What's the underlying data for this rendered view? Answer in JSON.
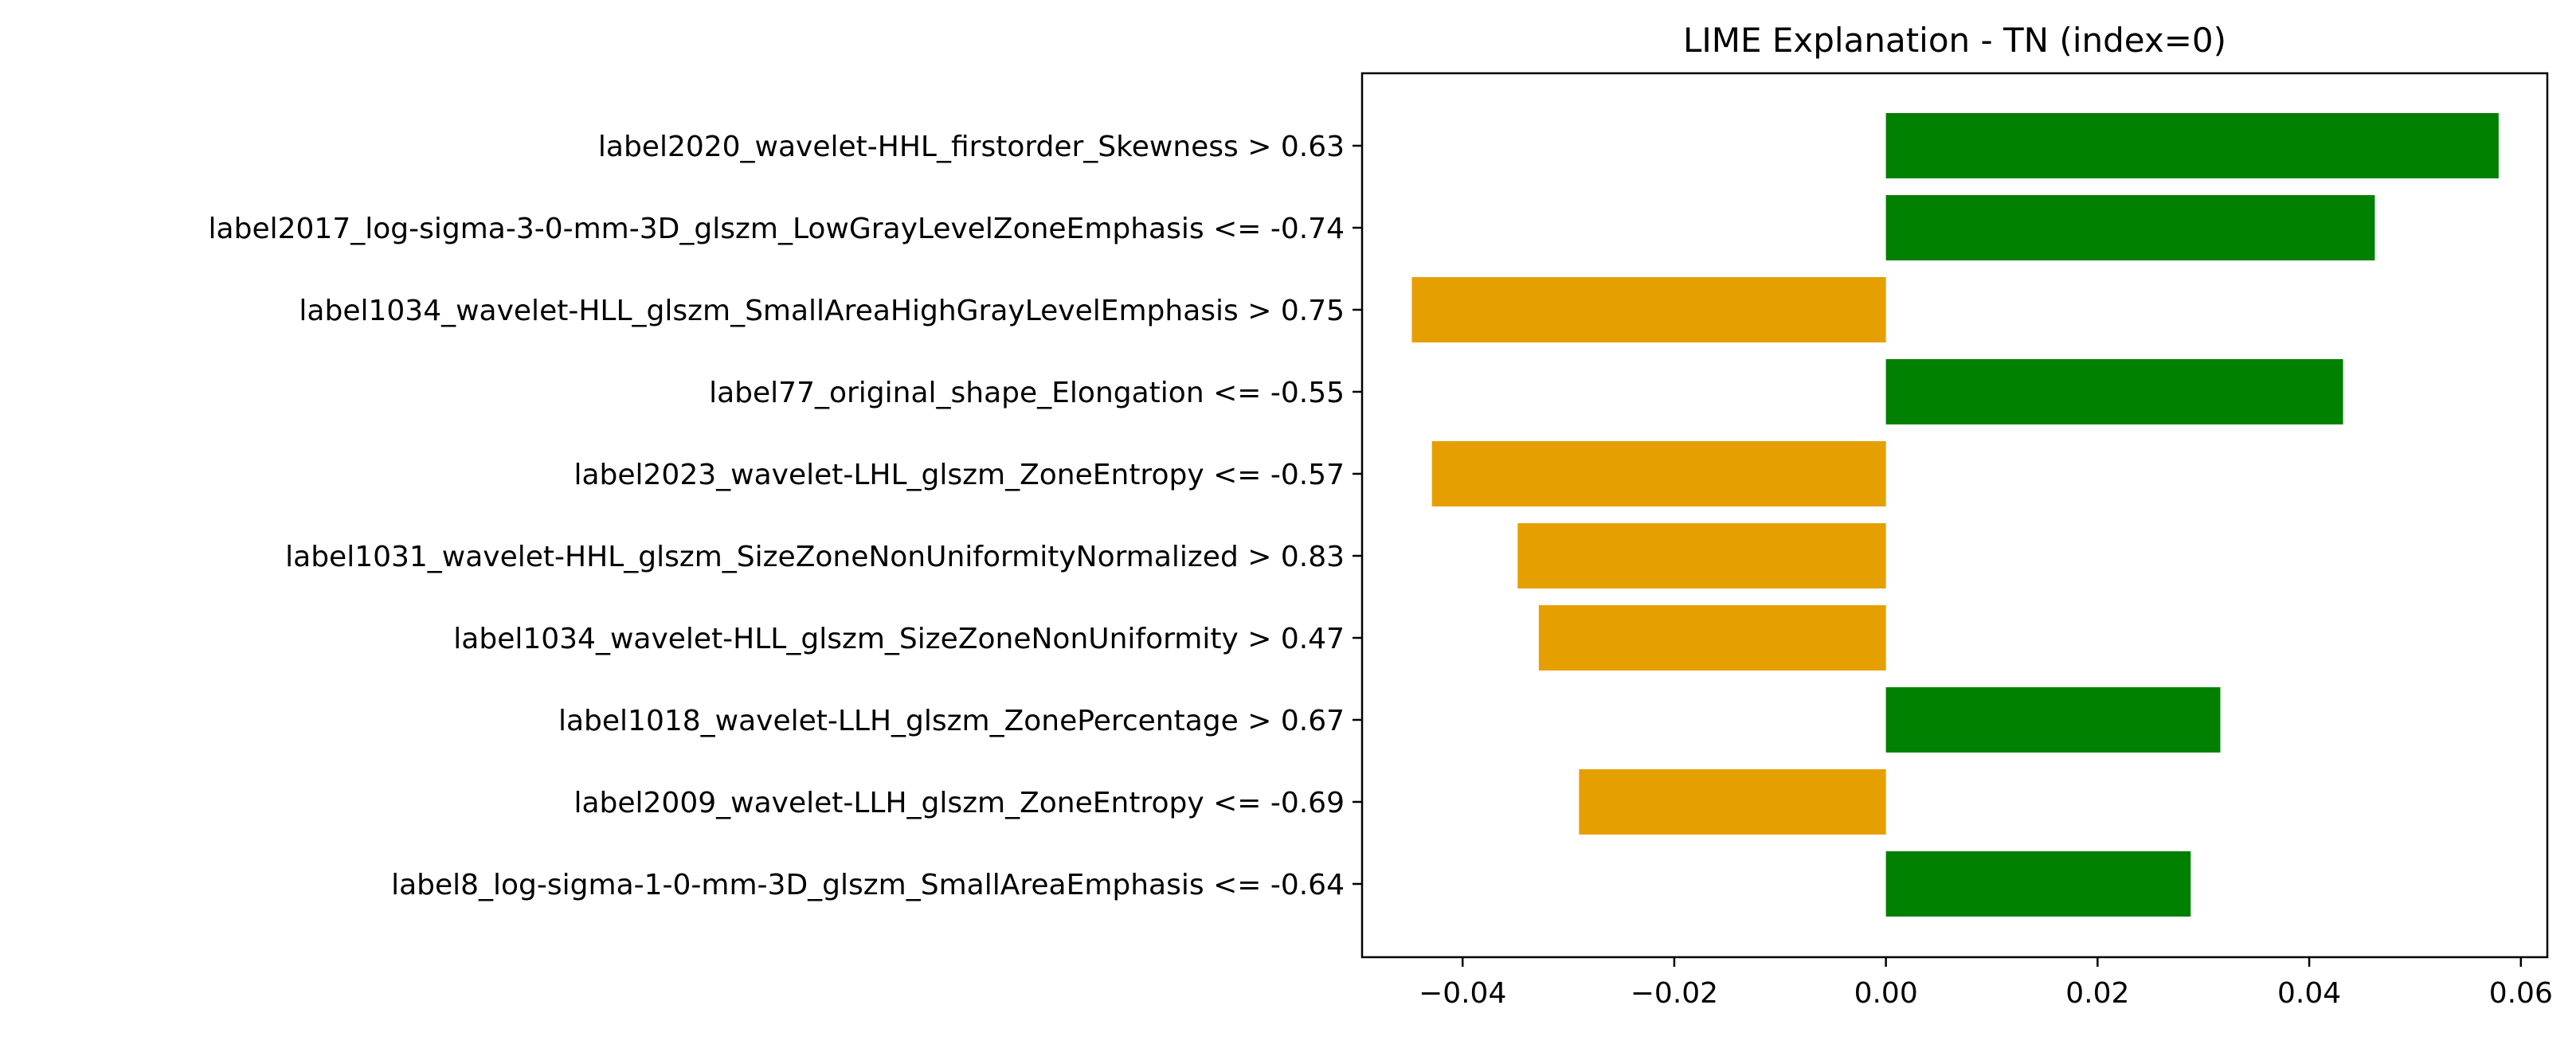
{
  "chart_data": {
    "type": "bar",
    "orientation": "horizontal",
    "title": "LIME Explanation - TN (index=0)",
    "xlabel": "",
    "ylabel": "",
    "xlim": [
      -0.0495,
      0.0625
    ],
    "grid": false,
    "legend": "none",
    "colors": {
      "positive": "#008000",
      "negative": "#E69F00",
      "axis": "#000000"
    },
    "categories": [
      "label2020_wavelet-HHL_firstorder_Skewness > 0.63",
      "label2017_log-sigma-3-0-mm-3D_glszm_LowGrayLevelZoneEmphasis <= -0.74",
      "label1034_wavelet-HLL_glszm_SmallAreaHighGrayLevelEmphasis > 0.75",
      "label77_original_shape_Elongation <= -0.55",
      "label2023_wavelet-LHL_glszm_ZoneEntropy <= -0.57",
      "label1031_wavelet-HHL_glszm_SizeZoneNonUniformityNormalized > 0.83",
      "label1034_wavelet-HLL_glszm_SizeZoneNonUniformity > 0.47",
      "label1018_wavelet-LLH_glszm_ZonePercentage > 0.67",
      "label2009_wavelet-LLH_glszm_ZoneEntropy <= -0.69",
      "label8_log-sigma-1-0-mm-3D_glszm_SmallAreaEmphasis <= -0.64"
    ],
    "values": [
      0.0579,
      0.0462,
      -0.0448,
      0.0432,
      -0.0429,
      -0.0348,
      -0.0328,
      0.0316,
      -0.029,
      0.0288
    ],
    "xticks": [
      -0.04,
      -0.02,
      0.0,
      0.02,
      0.04,
      0.06
    ],
    "xtick_labels": [
      "−0.04",
      "−0.02",
      "0.00",
      "0.02",
      "0.04",
      "0.06"
    ]
  }
}
